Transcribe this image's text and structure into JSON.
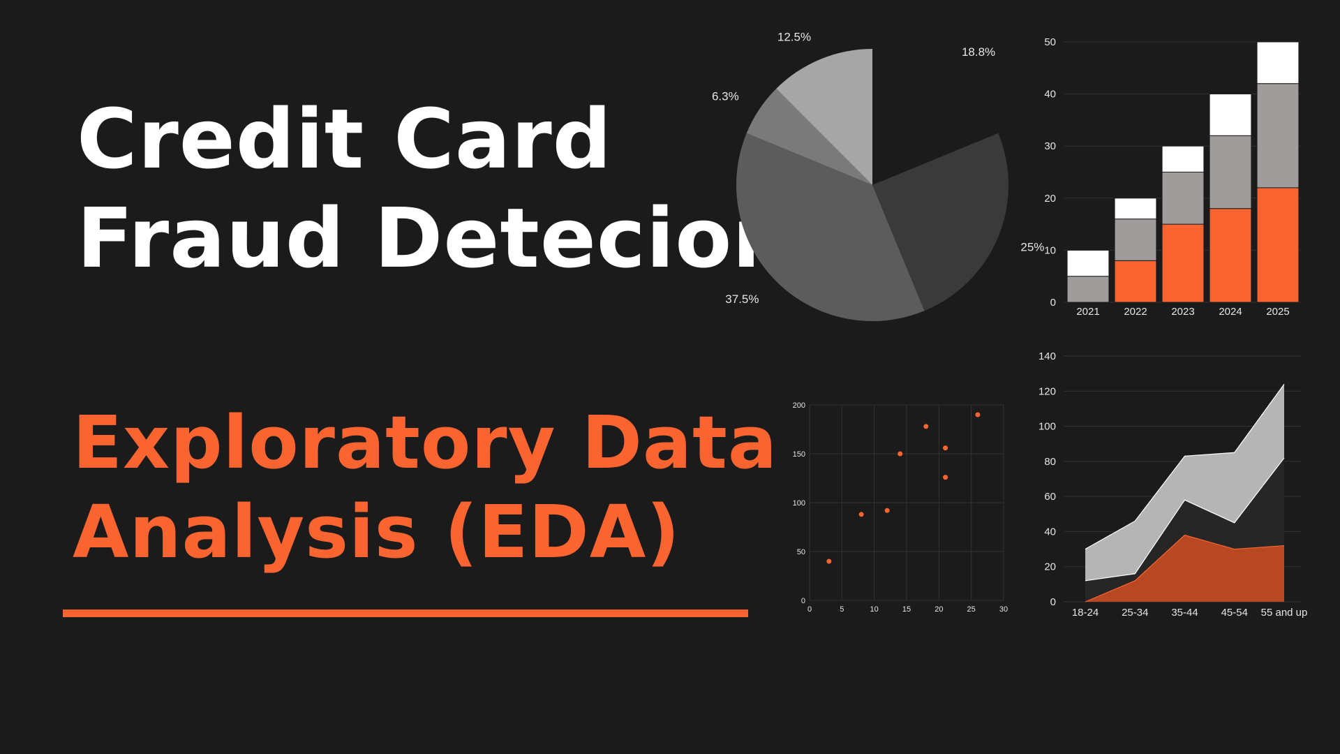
{
  "colors": {
    "background": "#1b1b1b",
    "title": "#ffffff",
    "accent": "#fa6431",
    "accent_dark": "#b84822",
    "grid": "#333333",
    "axis_text": "#e6e6e6"
  },
  "title_lines": [
    "Credit Card",
    "Fraud Detecion"
  ],
  "subtitle_lines": [
    "Exploratory Data",
    "Analysis (EDA)"
  ],
  "chart_data": [
    {
      "type": "pie",
      "title": "",
      "slices": [
        {
          "label": "18.8%",
          "value": 18.8,
          "color": "#1b1b1b"
        },
        {
          "label": "25%",
          "value": 25,
          "color": "#3a3a3a"
        },
        {
          "label": "37.5%",
          "value": 37.5,
          "color": "#5c5c5c"
        },
        {
          "label": "6.3%",
          "value": 6.3,
          "color": "#7a7a7a"
        },
        {
          "label": "12.5%",
          "value": 12.5,
          "color": "#a6a6a6"
        }
      ]
    },
    {
      "type": "bar",
      "stacked": true,
      "title": "",
      "categories": [
        "2021",
        "2022",
        "2023",
        "2024",
        "2025"
      ],
      "ylim": [
        0,
        50
      ],
      "yticks": [
        0,
        10,
        20,
        30,
        40,
        50
      ],
      "grid": true,
      "series": [
        {
          "values": [
            0,
            8,
            15,
            18,
            22
          ],
          "color": "#fa6431"
        },
        {
          "values": [
            5,
            8,
            10,
            14,
            20
          ],
          "color": "#a19c9c"
        },
        {
          "values": [
            5,
            4,
            5,
            8,
            8
          ],
          "color": "#ffffff"
        }
      ]
    },
    {
      "type": "scatter",
      "title": "",
      "xlim": [
        0,
        30
      ],
      "ylim": [
        0,
        200
      ],
      "xticks": [
        0,
        5,
        10,
        15,
        20,
        25,
        30
      ],
      "yticks": [
        0,
        50,
        100,
        150,
        200
      ],
      "grid": true,
      "color": "#fa6431",
      "points": [
        {
          "x": 3,
          "y": 40
        },
        {
          "x": 8,
          "y": 88
        },
        {
          "x": 12,
          "y": 92
        },
        {
          "x": 14,
          "y": 150
        },
        {
          "x": 18,
          "y": 178
        },
        {
          "x": 21,
          "y": 156
        },
        {
          "x": 21,
          "y": 126
        },
        {
          "x": 26,
          "y": 190
        }
      ]
    },
    {
      "type": "area",
      "title": "",
      "categories": [
        "18-24",
        "25-34",
        "35-44",
        "45-54",
        "55 and up"
      ],
      "ylim": [
        0,
        140
      ],
      "yticks": [
        0,
        20,
        40,
        60,
        80,
        100,
        120,
        140
      ],
      "grid": true,
      "series": [
        {
          "values": [
            30,
            46,
            83,
            85,
            124
          ],
          "color": "#b5b5b5"
        },
        {
          "values": [
            12,
            16,
            58,
            45,
            82
          ],
          "color": "#262626"
        },
        {
          "values": [
            0,
            12,
            38,
            30,
            32
          ],
          "color": "#b84822"
        }
      ]
    }
  ]
}
